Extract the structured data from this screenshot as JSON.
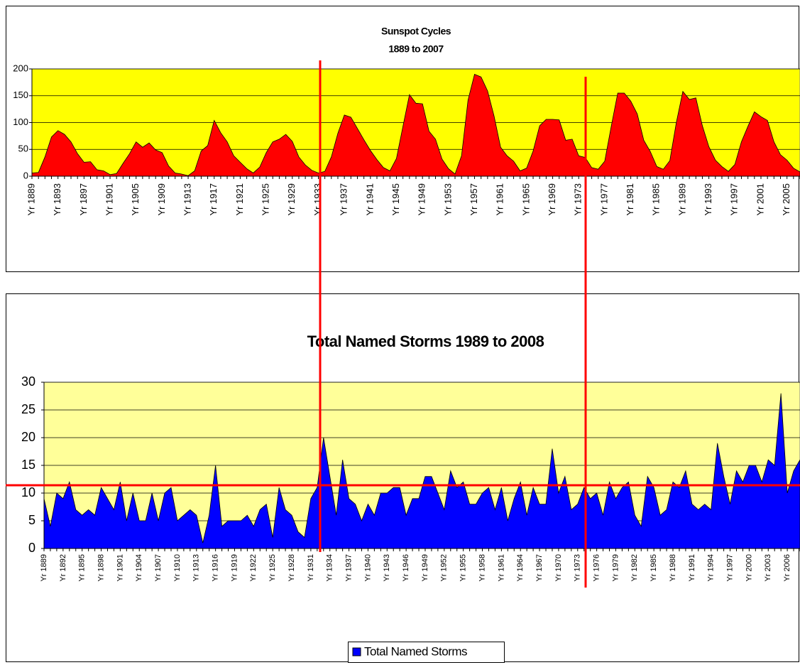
{
  "chart_data": [
    {
      "type": "area",
      "title": "Sunspot Cycles",
      "subtitle": "1889 to 2007",
      "categories": [
        "Yr 1889",
        null,
        null,
        null,
        "Yr 1893",
        null,
        null,
        null,
        "Yr 1897",
        null,
        null,
        null,
        "Yr 1901",
        null,
        null,
        null,
        "Yr 1905",
        null,
        null,
        null,
        "Yr 1909",
        null,
        null,
        null,
        "Yr 1913",
        null,
        null,
        null,
        "Yr 1917",
        null,
        null,
        null,
        "Yr 1921",
        null,
        null,
        null,
        "Yr 1925",
        null,
        null,
        null,
        "Yr 1929",
        null,
        null,
        null,
        "Yr 1933",
        null,
        null,
        null,
        "Yr 1937",
        null,
        null,
        null,
        "Yr 1941",
        null,
        null,
        null,
        "Yr 1945",
        null,
        null,
        null,
        "Yr 1949",
        null,
        null,
        null,
        "Yr 1953",
        null,
        null,
        null,
        "Yr 1957",
        null,
        null,
        null,
        "Yr 1961",
        null,
        null,
        null,
        "Yr 1965",
        null,
        null,
        null,
        "Yr 1969",
        null,
        null,
        null,
        "Yr 1973",
        null,
        null,
        null,
        "Yr 1977",
        null,
        null,
        null,
        "Yr 1981",
        null,
        null,
        null,
        "Yr 1985",
        null,
        null,
        null,
        "Yr 1989",
        null,
        null,
        null,
        "Yr 1993",
        null,
        null,
        null,
        "Yr 1997",
        null,
        null,
        null,
        "Yr 2001",
        null,
        null,
        null,
        "Yr 2005",
        null,
        null
      ],
      "values": [
        6,
        7,
        36,
        73,
        85,
        78,
        64,
        42,
        26,
        27,
        12,
        10,
        3,
        5,
        24,
        42,
        64,
        54,
        62,
        49,
        44,
        19,
        6,
        4,
        1,
        10,
        47,
        57,
        104,
        81,
        64,
        38,
        26,
        14,
        6,
        17,
        44,
        64,
        69,
        78,
        65,
        36,
        21,
        11,
        6,
        9,
        36,
        80,
        114,
        110,
        89,
        68,
        48,
        31,
        16,
        10,
        33,
        93,
        152,
        136,
        135,
        84,
        69,
        32,
        14,
        4,
        38,
        142,
        190,
        185,
        159,
        112,
        54,
        38,
        28,
        10,
        15,
        47,
        94,
        106,
        106,
        105,
        67,
        69,
        38,
        35,
        16,
        13,
        28,
        93,
        155,
        155,
        140,
        116,
        67,
        46,
        18,
        13,
        29,
        100,
        158,
        143,
        146,
        94,
        55,
        30,
        18,
        9,
        22,
        64,
        93,
        120,
        111,
        104,
        64,
        40,
        30,
        15,
        8
      ],
      "color": "#ff0000",
      "ylim": [
        0,
        200
      ],
      "yticks": [
        0,
        50,
        100,
        150,
        200
      ],
      "grid": true,
      "background": "#ffff00"
    },
    {
      "type": "area",
      "title": "Total Named  Storms 1989 to 2008",
      "categories": [
        "Yr 1889",
        null,
        null,
        "Yr 1892",
        null,
        null,
        "Yr 1895",
        null,
        null,
        "Yr 1898",
        null,
        null,
        "Yr 1901",
        null,
        null,
        "Yr 1904",
        null,
        null,
        "Yr 1907",
        null,
        null,
        "Yr 1910",
        null,
        null,
        "Yr 1913",
        null,
        null,
        "Yr 1916",
        null,
        null,
        "Yr 1919",
        null,
        null,
        "Yr 1922",
        null,
        null,
        "Yr 1925",
        null,
        null,
        "Yr 1928",
        null,
        null,
        "Yr 1931",
        null,
        null,
        "Yr 1934",
        null,
        null,
        "Yr 1937",
        null,
        null,
        "Yr 1940",
        null,
        null,
        "Yr 1943",
        null,
        null,
        "Yr 1946",
        null,
        null,
        "Yr 1949",
        null,
        null,
        "Yr 1952",
        null,
        null,
        "Yr 1955",
        null,
        null,
        "Yr 1958",
        null,
        null,
        "Yr 1961",
        null,
        null,
        "Yr 1964",
        null,
        null,
        "Yr 1967",
        null,
        null,
        "Yr 1970",
        null,
        null,
        "Yr 1973",
        null,
        null,
        "Yr 1976",
        null,
        null,
        "Yr 1979",
        null,
        null,
        "Yr 1982",
        null,
        null,
        "Yr 1985",
        null,
        null,
        "Yr 1988",
        null,
        null,
        "Yr 1991",
        null,
        null,
        "Yr 1994",
        null,
        null,
        "Yr 1997",
        null,
        null,
        "Yr 2000",
        null,
        null,
        "Yr 2003",
        null,
        null,
        "Yr 2006",
        null,
        null
      ],
      "series": [
        {
          "name": "Total Named  Storms",
          "color": "#0000ff",
          "values": [
            9,
            4,
            10,
            9,
            12,
            7,
            6,
            7,
            6,
            11,
            9,
            7,
            12,
            5,
            10,
            5,
            5,
            10,
            5,
            10,
            11,
            5,
            6,
            7,
            6,
            1,
            6,
            15,
            4,
            5,
            5,
            5,
            6,
            4,
            7,
            8,
            2,
            11,
            7,
            6,
            3,
            2,
            9,
            11,
            20,
            13,
            6,
            16,
            9,
            8,
            5,
            8,
            6,
            10,
            10,
            11,
            11,
            6,
            9,
            9,
            13,
            13,
            10,
            7,
            14,
            11,
            12,
            8,
            8,
            10,
            11,
            7,
            11,
            5,
            9,
            12,
            6,
            11,
            8,
            8,
            18,
            10,
            13,
            7,
            8,
            11,
            9,
            10,
            6,
            12,
            9,
            11,
            12,
            6,
            4,
            13,
            11,
            6,
            7,
            12,
            11,
            14,
            8,
            7,
            8,
            7,
            19,
            13,
            8,
            14,
            12,
            15,
            15,
            12,
            16,
            15,
            28,
            10,
            14,
            16
          ]
        }
      ],
      "ylim": [
        0,
        30
      ],
      "yticks": [
        0,
        5,
        10,
        15,
        20,
        25,
        30
      ],
      "grid": true,
      "background": "#ffff99",
      "legend": "bottom"
    }
  ]
}
